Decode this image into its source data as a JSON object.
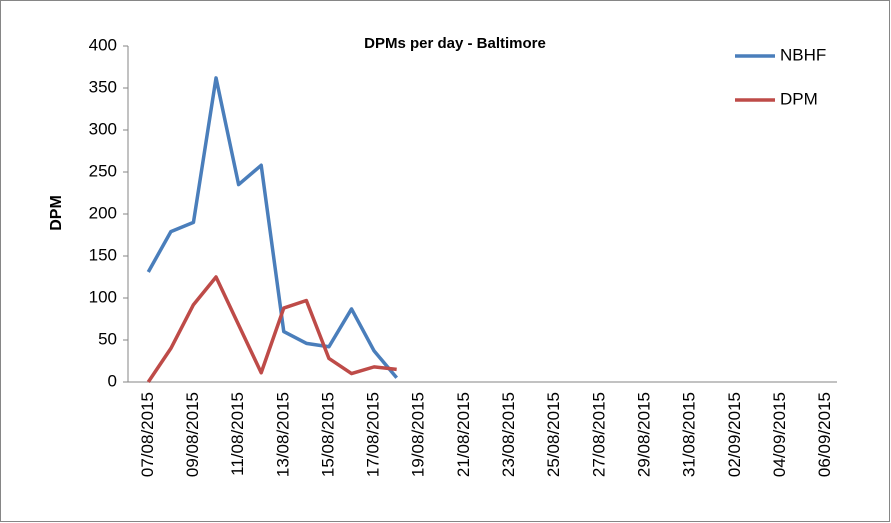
{
  "chart_data": {
    "type": "line",
    "title": "DPMs per day - Baltimore",
    "y_label": "DPM",
    "categories": [
      "07/08/2015",
      null,
      "09/08/2015",
      null,
      "11/08/2015",
      null,
      "13/08/2015",
      null,
      "15/08/2015",
      null,
      "17/08/2015",
      null,
      "19/08/2015",
      null,
      "21/08/2015",
      null,
      "23/08/2015",
      null,
      "25/08/2015",
      null,
      "27/08/2015",
      null,
      "29/08/2015",
      null,
      "31/08/2015",
      null,
      "02/09/2015",
      null,
      "04/09/2015",
      null,
      "06/09/2015"
    ],
    "series": [
      {
        "name": "NBHF",
        "color": "#4a7ebb",
        "values": [
          131,
          179,
          190,
          362,
          235,
          258,
          60,
          46,
          42,
          87,
          37,
          5,
          null,
          null,
          null,
          null,
          null,
          null,
          null,
          null,
          null,
          null,
          null,
          null,
          null,
          null,
          null,
          null,
          null,
          null,
          null
        ]
      },
      {
        "name": "DPM",
        "color": "#be4b48",
        "values": [
          0,
          40,
          92,
          125,
          68,
          11,
          88,
          97,
          28,
          10,
          18,
          15,
          null,
          null,
          null,
          null,
          null,
          null,
          null,
          null,
          null,
          null,
          null,
          null,
          null,
          null,
          null,
          null,
          null,
          null,
          null
        ]
      }
    ],
    "ylim": [
      0,
      400
    ],
    "yticks": [
      0,
      50,
      100,
      150,
      200,
      250,
      300,
      350,
      400
    ],
    "grid": false,
    "legend": "top-right"
  }
}
